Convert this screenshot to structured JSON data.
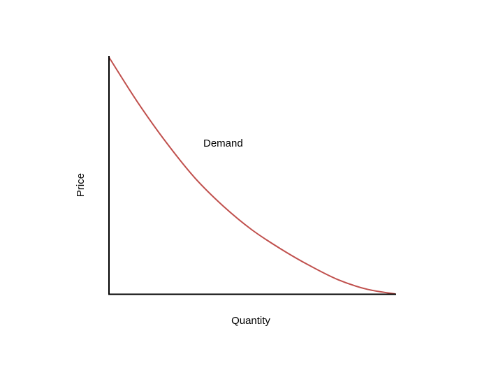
{
  "chart_data": {
    "type": "line",
    "xlabel": "Quantity",
    "ylabel": "Price",
    "grid": false,
    "annotations": [
      "Demand"
    ],
    "series": [
      {
        "name": "Demand",
        "color": "#c0504d",
        "points": [
          [
            0.0,
            1.0
          ],
          [
            0.1,
            0.81
          ],
          [
            0.2,
            0.64
          ],
          [
            0.3,
            0.49
          ],
          [
            0.4,
            0.37
          ],
          [
            0.5,
            0.27
          ],
          [
            0.6,
            0.19
          ],
          [
            0.7,
            0.12
          ],
          [
            0.8,
            0.06
          ],
          [
            0.9,
            0.02
          ],
          [
            1.0,
            0.0
          ]
        ]
      }
    ]
  }
}
